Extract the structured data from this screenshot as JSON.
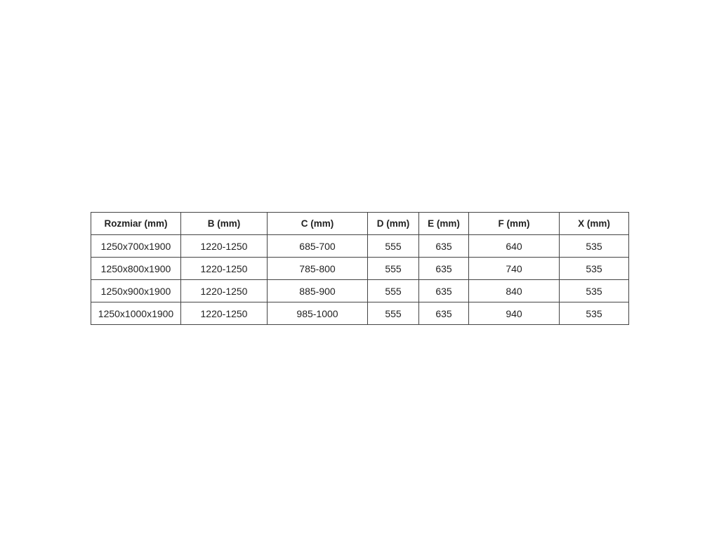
{
  "table": {
    "headers": [
      "Rozmiar (mm)",
      "B (mm)",
      "C (mm)",
      "D (mm)",
      "E (mm)",
      "F (mm)",
      "X (mm)"
    ],
    "rows": [
      [
        "1250x700x1900",
        "1220-1250",
        "685-700",
        "555",
        "635",
        "640",
        "535"
      ],
      [
        "1250x800x1900",
        "1220-1250",
        "785-800",
        "555",
        "635",
        "740",
        "535"
      ],
      [
        "1250x900x1900",
        "1220-1250",
        "885-900",
        "555",
        "635",
        "840",
        "535"
      ],
      [
        "1250x1000x1900",
        "1220-1250",
        "985-1000",
        "555",
        "635",
        "940",
        "535"
      ]
    ]
  }
}
